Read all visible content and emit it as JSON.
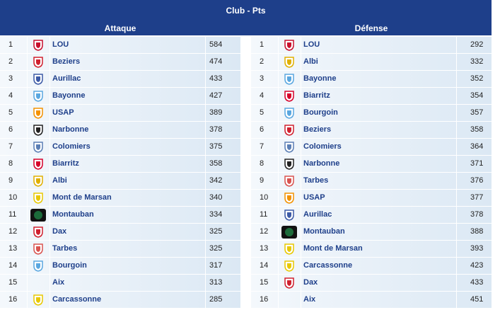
{
  "header": {
    "title": "Club - Pts"
  },
  "columns": {
    "left": "Attaque",
    "right": "Défense"
  },
  "attaque": [
    {
      "rank": "1",
      "team": "LOU",
      "pts": "584",
      "logo": "lou-logo-icon",
      "color": "#c8102e"
    },
    {
      "rank": "2",
      "team": "Beziers",
      "pts": "474",
      "logo": "beziers-logo-icon",
      "color": "#d0202e"
    },
    {
      "rank": "3",
      "team": "Aurillac",
      "pts": "433",
      "logo": "aurillac-logo-icon",
      "color": "#3c5aa6"
    },
    {
      "rank": "4",
      "team": "Bayonne",
      "pts": "427",
      "logo": "bayonne-logo-icon",
      "color": "#5aa7e0"
    },
    {
      "rank": "5",
      "team": "USAP",
      "pts": "389",
      "logo": "usap-logo-icon",
      "color": "#f39200"
    },
    {
      "rank": "6",
      "team": "Narbonne",
      "pts": "378",
      "logo": "narbonne-logo-icon",
      "color": "#222222"
    },
    {
      "rank": "7",
      "team": "Colomiers",
      "pts": "375",
      "logo": "colomiers-logo-icon",
      "color": "#5b7fb5"
    },
    {
      "rank": "8",
      "team": "Biarritz",
      "pts": "358",
      "logo": "biarritz-logo-icon",
      "color": "#d6002a"
    },
    {
      "rank": "9",
      "team": "Albi",
      "pts": "342",
      "logo": "albi-logo-icon",
      "color": "#e0b000"
    },
    {
      "rank": "10",
      "team": "Mont de Marsan",
      "pts": "340",
      "logo": "mont-de-marsan-logo-icon",
      "color": "#e8c800"
    },
    {
      "rank": "11",
      "team": "Montauban",
      "pts": "334",
      "logo": "montauban-logo-icon",
      "color": "#1c6b3a"
    },
    {
      "rank": "12",
      "team": "Dax",
      "pts": "325",
      "logo": "dax-logo-icon",
      "color": "#d0202e"
    },
    {
      "rank": "13",
      "team": "Tarbes",
      "pts": "325",
      "logo": "tarbes-logo-icon",
      "color": "#d9534f"
    },
    {
      "rank": "14",
      "team": "Bourgoin",
      "pts": "317",
      "logo": "bourgoin-logo-icon",
      "color": "#5aa7e0"
    },
    {
      "rank": "15",
      "team": "Aix",
      "pts": "313",
      "logo": "",
      "color": ""
    },
    {
      "rank": "16",
      "team": "Carcassonne",
      "pts": "285",
      "logo": "carcassonne-logo-icon",
      "color": "#e8c800"
    }
  ],
  "defense": [
    {
      "rank": "1",
      "team": "LOU",
      "pts": "292",
      "logo": "lou-logo-icon",
      "color": "#c8102e"
    },
    {
      "rank": "2",
      "team": "Albi",
      "pts": "332",
      "logo": "albi-logo-icon",
      "color": "#e0b000"
    },
    {
      "rank": "3",
      "team": "Bayonne",
      "pts": "352",
      "logo": "bayonne-logo-icon",
      "color": "#5aa7e0"
    },
    {
      "rank": "4",
      "team": "Biarritz",
      "pts": "354",
      "logo": "biarritz-logo-icon",
      "color": "#d6002a"
    },
    {
      "rank": "5",
      "team": "Bourgoin",
      "pts": "357",
      "logo": "bourgoin-logo-icon",
      "color": "#5aa7e0"
    },
    {
      "rank": "6",
      "team": "Beziers",
      "pts": "358",
      "logo": "beziers-logo-icon",
      "color": "#d0202e"
    },
    {
      "rank": "7",
      "team": "Colomiers",
      "pts": "364",
      "logo": "colomiers-logo-icon",
      "color": "#5b7fb5"
    },
    {
      "rank": "8",
      "team": "Narbonne",
      "pts": "371",
      "logo": "narbonne-logo-icon",
      "color": "#222222"
    },
    {
      "rank": "9",
      "team": "Tarbes",
      "pts": "376",
      "logo": "tarbes-logo-icon",
      "color": "#d9534f"
    },
    {
      "rank": "10",
      "team": "USAP",
      "pts": "377",
      "logo": "usap-logo-icon",
      "color": "#f39200"
    },
    {
      "rank": "11",
      "team": "Aurillac",
      "pts": "378",
      "logo": "aurillac-logo-icon",
      "color": "#3c5aa6"
    },
    {
      "rank": "12",
      "team": "Montauban",
      "pts": "388",
      "logo": "montauban-logo-icon",
      "color": "#1c6b3a"
    },
    {
      "rank": "13",
      "team": "Mont de Marsan",
      "pts": "393",
      "logo": "mont-de-marsan-logo-icon",
      "color": "#e8c800"
    },
    {
      "rank": "14",
      "team": "Carcassonne",
      "pts": "423",
      "logo": "carcassonne-logo-icon",
      "color": "#e8c800"
    },
    {
      "rank": "15",
      "team": "Dax",
      "pts": "433",
      "logo": "dax-logo-icon",
      "color": "#d0202e"
    },
    {
      "rank": "16",
      "team": "Aix",
      "pts": "451",
      "logo": "",
      "color": ""
    }
  ]
}
